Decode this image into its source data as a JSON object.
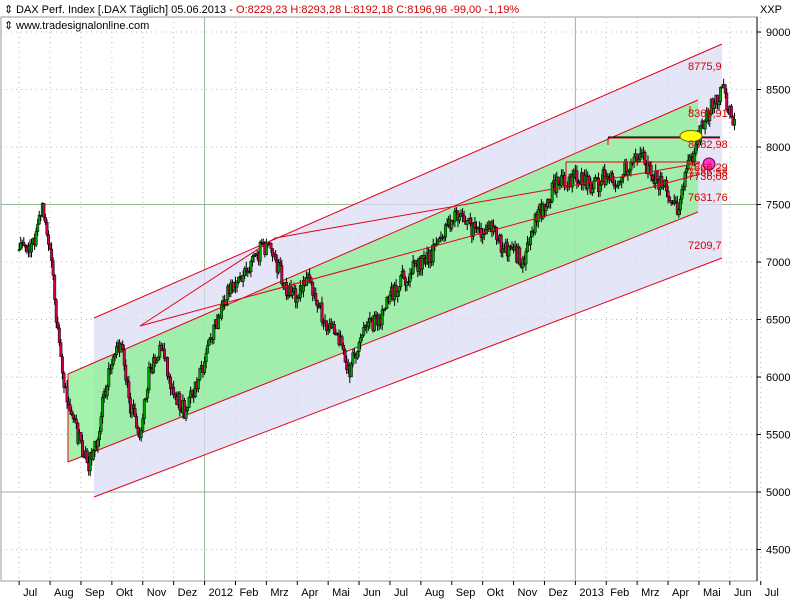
{
  "header": {
    "symbol": "DAX Perf. Index [.DAX  Täglich] 05.06.2013 - ",
    "ohlc": "O:8229,23 H:8293,28 L:8192,18 C:8196,96 -99,00 -1,19%",
    "source": "www.tradesignalonline.com",
    "ticker": "XXP"
  },
  "colors": {
    "up_candle": "#00a000",
    "down_candle": "#d00050",
    "candle_outline": "#000000",
    "regression_green": "#8fef98",
    "channel_outer": "#dcdcf6",
    "red_line": "#e4001b",
    "marker_yellow": "#ffff00",
    "marker_magenta": "#ff33cc"
  },
  "chart_data": {
    "type": "candlestick",
    "ylim": [
      4250,
      9000
    ],
    "y_ticks": [
      {
        "value": 9000,
        "label": "9000"
      },
      {
        "value": 8500,
        "label": "8500"
      },
      {
        "value": 8000,
        "label": "8000"
      },
      {
        "value": 7500,
        "label": "7500"
      },
      {
        "value": 7000,
        "label": "7000"
      },
      {
        "value": 6500,
        "label": "6500"
      },
      {
        "value": 6000,
        "label": "6000"
      },
      {
        "value": 5500,
        "label": "5500"
      },
      {
        "value": 5000,
        "label": "5000"
      },
      {
        "value": 4500,
        "label": "4500"
      }
    ],
    "x_ticks": [
      {
        "label": "Jul",
        "t": 0
      },
      {
        "label": "Aug",
        "t": 1
      },
      {
        "label": "Sep",
        "t": 2
      },
      {
        "label": "Okt",
        "t": 3
      },
      {
        "label": "Nov",
        "t": 4
      },
      {
        "label": "Dez",
        "t": 5
      },
      {
        "label": "2012",
        "t": 6
      },
      {
        "label": "Feb",
        "t": 7
      },
      {
        "label": "Mrz",
        "t": 8
      },
      {
        "label": "Apr",
        "t": 9
      },
      {
        "label": "Mai",
        "t": 10
      },
      {
        "label": "Jun",
        "t": 11
      },
      {
        "label": "Jul",
        "t": 12
      },
      {
        "label": "Aug",
        "t": 13
      },
      {
        "label": "Sep",
        "t": 14
      },
      {
        "label": "Okt",
        "t": 15
      },
      {
        "label": "Nov",
        "t": 16
      },
      {
        "label": "Dez",
        "t": 17
      },
      {
        "label": "2013",
        "t": 18
      },
      {
        "label": "Feb",
        "t": 19
      },
      {
        "label": "Mrz",
        "t": 20
      },
      {
        "label": "Apr",
        "t": 21
      },
      {
        "label": "Mai",
        "t": 22
      },
      {
        "label": "Jun",
        "t": 23
      },
      {
        "label": "Jul",
        "t": 24
      }
    ],
    "level_labels": [
      {
        "label": "8775,9",
        "value": 8775.9
      },
      {
        "label": "8366,91",
        "value": 8366.91
      },
      {
        "label": "8082,98",
        "value": 8082.98
      },
      {
        "label": "7866,29",
        "value": 7866.29
      },
      {
        "label": "7786,58",
        "value": 7786.58
      },
      {
        "label": "7736,08",
        "value": 7736.08
      },
      {
        "label": "7631,76",
        "value": 7631.76
      },
      {
        "label": "7209,7",
        "value": 7209.7
      }
    ],
    "close_path": [
      [
        0.0,
        7100
      ],
      [
        0.3,
        7150
      ],
      [
        0.55,
        7200
      ],
      [
        0.75,
        7480
      ],
      [
        1.0,
        7150
      ],
      [
        1.2,
        6550
      ],
      [
        1.45,
        5900
      ],
      [
        1.7,
        5700
      ],
      [
        2.0,
        5400
      ],
      [
        2.25,
        5250
      ],
      [
        2.5,
        5450
      ],
      [
        2.8,
        5900
      ],
      [
        3.0,
        6100
      ],
      [
        3.3,
        6300
      ],
      [
        3.6,
        5750
      ],
      [
        3.9,
        5500
      ],
      [
        4.2,
        6050
      ],
      [
        4.6,
        6250
      ],
      [
        5.0,
        5850
      ],
      [
        5.4,
        5700
      ],
      [
        5.8,
        6000
      ],
      [
        6.0,
        6150
      ],
      [
        6.3,
        6400
      ],
      [
        6.6,
        6650
      ],
      [
        6.9,
        6800
      ],
      [
        7.3,
        6900
      ],
      [
        7.6,
        7050
      ],
      [
        8.0,
        7150
      ],
      [
        8.3,
        7000
      ],
      [
        8.7,
        6750
      ],
      [
        9.0,
        6700
      ],
      [
        9.3,
        6850
      ],
      [
        9.7,
        6600
      ],
      [
        10.0,
        6450
      ],
      [
        10.4,
        6300
      ],
      [
        10.7,
        6050
      ],
      [
        11.0,
        6300
      ],
      [
        11.3,
        6450
      ],
      [
        11.7,
        6500
      ],
      [
        12.0,
        6700
      ],
      [
        12.4,
        6850
      ],
      [
        12.8,
        6950
      ],
      [
        13.0,
        7000
      ],
      [
        13.3,
        7050
      ],
      [
        13.6,
        7200
      ],
      [
        14.0,
        7350
      ],
      [
        14.3,
        7400
      ],
      [
        14.6,
        7300
      ],
      [
        15.0,
        7250
      ],
      [
        15.3,
        7300
      ],
      [
        15.6,
        7150
      ],
      [
        16.0,
        7100
      ],
      [
        16.3,
        7000
      ],
      [
        16.6,
        7300
      ],
      [
        17.0,
        7500
      ],
      [
        17.3,
        7650
      ],
      [
        17.6,
        7700
      ],
      [
        18.0,
        7750
      ],
      [
        18.3,
        7700
      ],
      [
        18.6,
        7650
      ],
      [
        19.0,
        7750
      ],
      [
        19.3,
        7650
      ],
      [
        19.6,
        7800
      ],
      [
        20.0,
        7950
      ],
      [
        20.4,
        7800
      ],
      [
        20.7,
        7700
      ],
      [
        21.0,
        7600
      ],
      [
        21.3,
        7450
      ],
      [
        21.6,
        7800
      ],
      [
        22.0,
        8100
      ],
      [
        22.3,
        8300
      ],
      [
        22.6,
        8450
      ],
      [
        22.8,
        8500
      ],
      [
        23.0,
        8300
      ],
      [
        23.2,
        8200
      ]
    ]
  }
}
